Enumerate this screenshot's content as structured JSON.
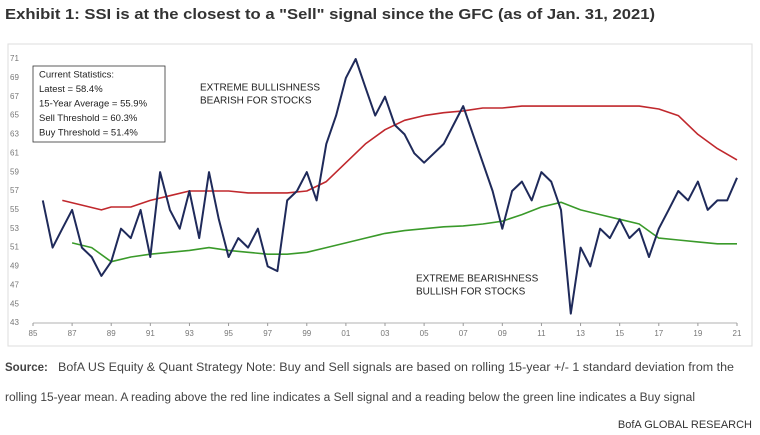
{
  "chart_data": {
    "type": "line",
    "title": "Exhibit 1: SSI is at the closest to a \"Sell\" signal since the GFC (as of Jan. 31, 2021)",
    "stats_box": [
      "Current Statistics:",
      "Latest = 58.4%",
      "15-Year Average = 55.9%",
      "Sell Threshold = 60.3%",
      "Buy Threshold = 51.4%"
    ],
    "annotations": [
      {
        "lines": [
          "EXTREME BULLISHNESS",
          "BEARISH FOR STOCKS"
        ]
      },
      {
        "lines": [
          "EXTREME BEARISHNESS",
          "BULLISH FOR STOCKS"
        ]
      }
    ],
    "series": [
      {
        "color": "#1f2a5a",
        "x": [
          1985.5,
          1986,
          1986.5,
          1987,
          1987.5,
          1988,
          1988.5,
          1989,
          1989.5,
          1990,
          1990.5,
          1991,
          1991.5,
          1992,
          1992.5,
          1993,
          1993.5,
          1994,
          1994.5,
          1995,
          1995.5,
          1996,
          1996.5,
          1997,
          1997.5,
          1998,
          1998.5,
          1999,
          1999.5,
          2000,
          2000.5,
          2001,
          2001.5,
          2002,
          2002.5,
          2003,
          2003.5,
          2004,
          2004.5,
          2005,
          2005.5,
          2006,
          2006.5,
          2007,
          2007.5,
          2008,
          2008.5,
          2009,
          2009.5,
          2010,
          2010.5,
          2011,
          2011.5,
          2012,
          2012.5,
          2013,
          2013.5,
          2014,
          2014.5,
          2015,
          2015.5,
          2016,
          2016.5,
          2017,
          2017.5,
          2018,
          2018.5,
          2019,
          2019.5,
          2020,
          2020.5,
          2021
        ],
        "values": [
          56,
          51,
          53,
          55,
          51,
          50,
          48,
          49.5,
          53,
          52,
          55,
          50,
          59,
          55,
          53,
          57,
          52,
          59,
          54,
          50,
          52,
          51,
          53,
          49,
          48.5,
          56,
          57,
          59,
          56,
          62,
          65,
          69,
          71,
          68,
          65,
          67,
          64,
          63,
          61,
          60,
          61,
          62,
          64,
          66,
          63,
          60,
          57,
          53,
          57,
          58,
          56,
          59,
          58,
          55,
          44,
          51,
          49,
          53,
          52,
          54,
          52,
          53,
          50,
          53,
          55,
          57,
          56,
          58,
          55,
          56,
          56,
          58.4
        ]
      },
      {
        "color": "#c0282d",
        "x": [
          1986.5,
          1987.5,
          1988.5,
          1989,
          1990,
          1991,
          1992,
          1993,
          1994,
          1995,
          1996,
          1997,
          1998,
          1999,
          2000,
          2001,
          2002,
          2003,
          2004,
          2005,
          2006,
          2007,
          2008,
          2009,
          2010,
          2011,
          2012,
          2013,
          2014,
          2015,
          2016,
          2017,
          2018,
          2019,
          2020,
          2021
        ],
        "values": [
          56,
          55.5,
          55,
          55.3,
          55.3,
          56,
          56.5,
          57,
          57,
          57,
          56.8,
          56.8,
          56.8,
          57,
          58,
          60,
          62,
          63.5,
          64.5,
          65,
          65.3,
          65.5,
          65.8,
          65.8,
          66,
          66,
          66,
          66,
          66,
          66,
          66,
          65.7,
          65,
          63,
          61.5,
          60.3
        ]
      },
      {
        "color": "#3a9a2a",
        "x": [
          1987,
          1988,
          1989,
          1990,
          1991,
          1992,
          1993,
          1994,
          1995,
          1996,
          1997,
          1998,
          1999,
          2000,
          2001,
          2002,
          2003,
          2004,
          2005,
          2006,
          2007,
          2008,
          2009,
          2010,
          2011,
          2012,
          2013,
          2014,
          2015,
          2016,
          2017,
          2018,
          2019,
          2020,
          2021
        ],
        "values": [
          51.5,
          51,
          49.5,
          50,
          50.3,
          50.5,
          50.7,
          51,
          50.7,
          50.5,
          50.3,
          50.3,
          50.5,
          51,
          51.5,
          52,
          52.5,
          52.8,
          53,
          53.2,
          53.3,
          53.5,
          53.8,
          54.5,
          55.3,
          55.8,
          55,
          54.5,
          54,
          53.5,
          52,
          51.8,
          51.6,
          51.4,
          51.4
        ]
      }
    ],
    "xlim": [
      1985,
      2021
    ],
    "xticks": [
      {
        "value": 1985,
        "label": "85"
      },
      {
        "value": 1987,
        "label": "87"
      },
      {
        "value": 1989,
        "label": "89"
      },
      {
        "value": 1991,
        "label": "91"
      },
      {
        "value": 1993,
        "label": "93"
      },
      {
        "value": 1995,
        "label": "95"
      },
      {
        "value": 1997,
        "label": "97"
      },
      {
        "value": 1999,
        "label": "99"
      },
      {
        "value": 2001,
        "label": "01"
      },
      {
        "value": 2003,
        "label": "03"
      },
      {
        "value": 2005,
        "label": "05"
      },
      {
        "value": 2007,
        "label": "07"
      },
      {
        "value": 2009,
        "label": "09"
      },
      {
        "value": 2011,
        "label": "11"
      },
      {
        "value": 2013,
        "label": "13"
      },
      {
        "value": 2015,
        "label": "15"
      },
      {
        "value": 2017,
        "label": "17"
      },
      {
        "value": 2019,
        "label": "19"
      },
      {
        "value": 2021,
        "label": "21"
      }
    ],
    "ylim": [
      43,
      71
    ],
    "yticks": [
      43,
      45,
      47,
      49,
      51,
      53,
      55,
      57,
      59,
      61,
      63,
      65,
      67,
      69,
      71
    ],
    "source_label": "Source:",
    "source_lines": [
      "BofA US Equity & Quant Strategy Note: Buy and Sell signals are based on rolling 15-year +/- 1 standard deviation from the",
      "rolling 15-year mean. A reading above the red line indicates a Sell signal and a reading below the green line indicates a Buy signal"
    ],
    "footer": "BofA GLOBAL RESEARCH"
  }
}
